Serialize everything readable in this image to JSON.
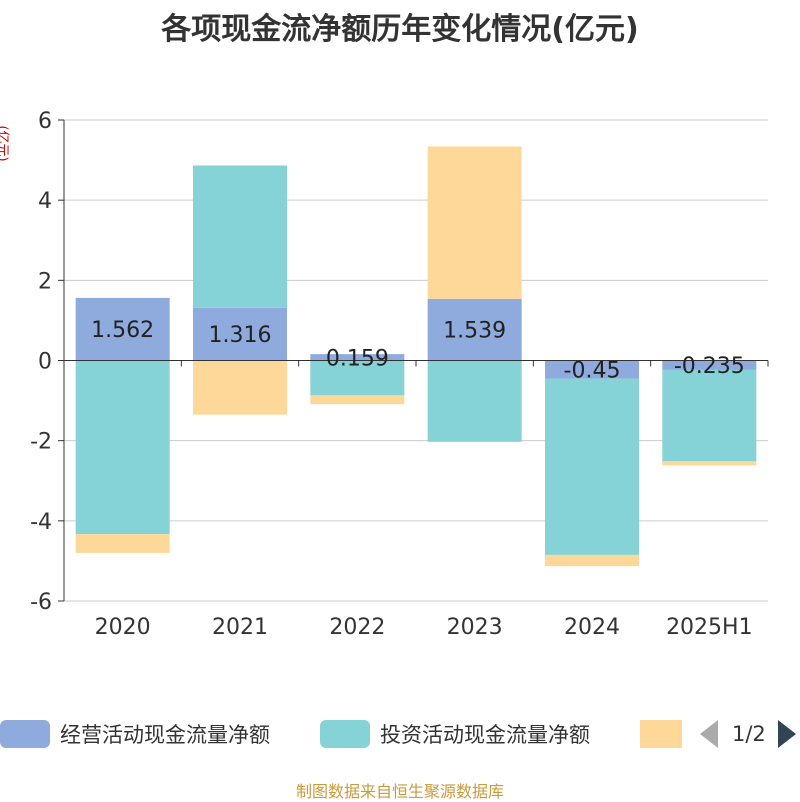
{
  "title": "各项现金流净额历年变化情况(亿元)",
  "footer": "制图数据来自恒生聚源数据库",
  "legend_pager": "1/2",
  "chart_data": {
    "type": "bar",
    "stacked": true,
    "title": "各项现金流净额历年变化情况(亿元)",
    "ylabel": "(亿元)",
    "ylim": [
      -6,
      6
    ],
    "yticks": [
      "6",
      "4",
      "2",
      "0",
      "-2",
      "-4",
      "-6"
    ],
    "categories": [
      "2020",
      "2021",
      "2022",
      "2023",
      "2024",
      "2025H1"
    ],
    "grid": true,
    "legend_position": "bottom",
    "series": [
      {
        "name": "经营活动现金流量净额",
        "color": "#8faadc",
        "values": [
          1.562,
          1.316,
          0.159,
          1.539,
          -0.45,
          -0.235
        ],
        "labels": [
          "1.562",
          "1.316",
          "0.159",
          "1.539",
          "-0.45",
          "-0.235"
        ]
      },
      {
        "name": "投资活动现金流量净额",
        "color": "#85d3d6",
        "values": [
          -4.33,
          3.55,
          -0.87,
          -2.03,
          -4.4,
          -2.28
        ]
      },
      {
        "name": "",
        "color": "#fdd898",
        "values": [
          -0.47,
          -1.35,
          -0.22,
          3.8,
          -0.28,
          -0.1
        ]
      }
    ]
  }
}
